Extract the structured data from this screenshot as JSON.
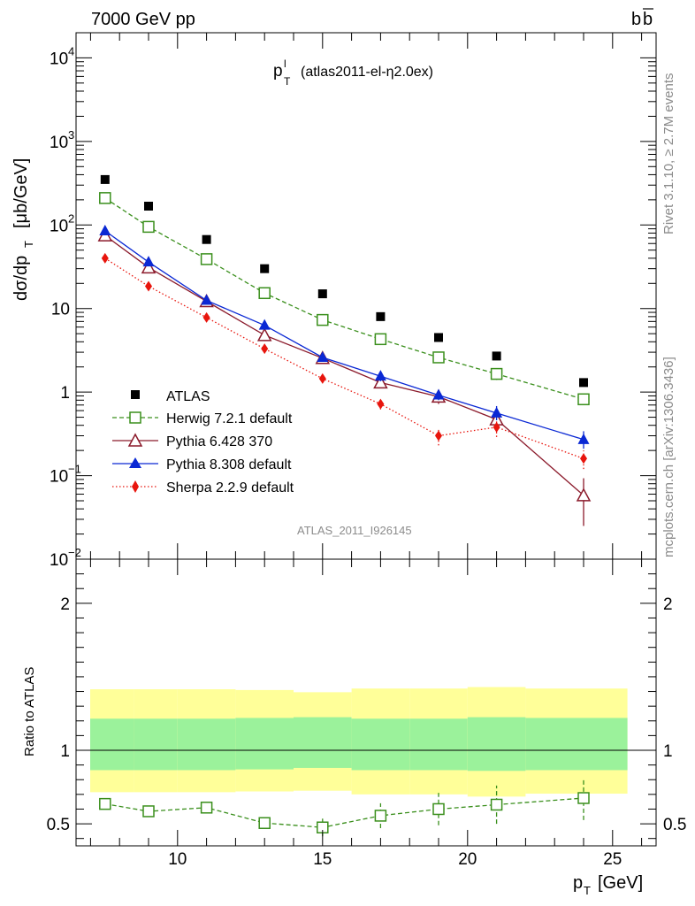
{
  "header": {
    "left": "7000 GeV pp",
    "right_base": "b",
    "right_bar": "b"
  },
  "side": {
    "top": "Rivet 3.1.10, ≥ 2.7M events",
    "bottom": "mcplots.cern.ch [arXiv:1306.3436]"
  },
  "watermark": "ATLAS_2011_I926145",
  "chart_data": [
    {
      "type": "line",
      "title_main": "p",
      "title_sup": "l",
      "title_sub": "T",
      "title_rest": "(atlas2011-el-η2.0ex)",
      "ylabel": "dσ/dp_T [μb/GeV]",
      "yscale": "log",
      "ylim": [
        0.01,
        20000
      ],
      "xlim": [
        6.5,
        26.5
      ],
      "y_ticks": [
        {
          "v": 10000,
          "base": "10",
          "exp": "4"
        },
        {
          "v": 1000,
          "base": "10",
          "exp": "3"
        },
        {
          "v": 100,
          "base": "10",
          "exp": "2"
        },
        {
          "v": 10,
          "base": "10",
          "exp": ""
        },
        {
          "v": 1,
          "base": "1",
          "exp": ""
        },
        {
          "v": 0.1,
          "base": "10",
          "exp": "−1"
        },
        {
          "v": 0.01,
          "base": "10",
          "exp": "−2"
        }
      ],
      "x": [
        7.5,
        9,
        11,
        13,
        15,
        17,
        19,
        21,
        24
      ],
      "series": [
        {
          "name": "ATLAS",
          "color": "#000000",
          "marker": "filled-square",
          "line": "none",
          "values": [
            350,
            168,
            67,
            30,
            15,
            8,
            4.5,
            2.7,
            1.3
          ]
        },
        {
          "name": "Herwig 7.2.1 default",
          "color": "#3a8f1c",
          "marker": "open-square",
          "line": "dashed",
          "values": [
            210,
            95,
            39,
            15.3,
            7.3,
            4.3,
            2.6,
            1.65,
            0.82
          ],
          "err_low": [
            195,
            90,
            37,
            14.5,
            7.0,
            4.1,
            2.4,
            1.4,
            0.7
          ],
          "err_high": [
            225,
            100,
            41,
            16.2,
            7.7,
            4.5,
            2.85,
            1.95,
            0.95
          ]
        },
        {
          "name": "Pythia 6.428 370",
          "color": "#8b1a2b",
          "marker": "open-triangle",
          "line": "solid",
          "values": [
            75,
            31,
            12.2,
            4.8,
            2.55,
            1.3,
            0.88,
            0.47,
            0.058
          ],
          "err_low": [
            72,
            30,
            11.7,
            4.5,
            2.4,
            1.15,
            0.72,
            0.38,
            0.025
          ],
          "err_high": [
            78,
            32,
            12.7,
            5.1,
            2.7,
            1.45,
            1.05,
            0.56,
            0.093
          ]
        },
        {
          "name": "Pythia 8.308 default",
          "color": "#0a28d4",
          "marker": "filled-triangle",
          "line": "solid",
          "values": [
            85,
            36,
            12.5,
            6.3,
            2.6,
            1.55,
            0.92,
            0.56,
            0.27
          ],
          "err_low": [
            82,
            34,
            12.0,
            6.0,
            2.45,
            1.35,
            0.8,
            0.46,
            0.21
          ],
          "err_high": [
            88,
            38,
            13.0,
            6.6,
            2.75,
            1.75,
            1.05,
            0.68,
            0.34
          ]
        },
        {
          "name": "Sherpa 2.2.9 default",
          "color": "#e8150d",
          "marker": "filled-diamond",
          "line": "dotted",
          "values": [
            40,
            18.5,
            7.8,
            3.3,
            1.45,
            0.72,
            0.3,
            0.38,
            0.16
          ],
          "err_low": [
            38,
            17.5,
            7.4,
            3.1,
            1.35,
            0.62,
            0.23,
            0.29,
            0.12
          ],
          "err_high": [
            42,
            19.5,
            8.2,
            3.5,
            1.55,
            0.82,
            0.37,
            0.47,
            0.2
          ]
        }
      ],
      "legend": "left, lower half"
    },
    {
      "type": "line",
      "ylabel": "Ratio to ATLAS",
      "xlabel_main": "p",
      "xlabel_sub": "T",
      "xlabel_rest": "[GeV]",
      "xlim": [
        6.5,
        26.5
      ],
      "ylim": [
        0.35,
        2.3
      ],
      "x_ticks": [
        10,
        15,
        20,
        25
      ],
      "y_ticks": [
        0.5,
        1,
        2
      ],
      "bands": {
        "edges": [
          6.5,
          8.5,
          10,
          12,
          14,
          16,
          18,
          20,
          22,
          26
        ],
        "inner_low": [
          0.865,
          0.865,
          0.865,
          0.87,
          0.88,
          0.865,
          0.865,
          0.86,
          0.865
        ],
        "inner_high": [
          1.215,
          1.215,
          1.215,
          1.22,
          1.225,
          1.215,
          1.215,
          1.225,
          1.22
        ],
        "outer_low": [
          0.715,
          0.715,
          0.715,
          0.72,
          0.725,
          0.7,
          0.7,
          0.685,
          0.705
        ],
        "outer_high": [
          1.415,
          1.415,
          1.415,
          1.41,
          1.395,
          1.42,
          1.42,
          1.43,
          1.42
        ],
        "inner_color": "#9bf29b",
        "outer_color": "#ffff99"
      },
      "series": [
        {
          "name": "Herwig 7.2.1 default",
          "color": "#3a8f1c",
          "marker": "open-square",
          "line": "dashed",
          "values": [
            0.635,
            0.585,
            0.61,
            0.505,
            0.475,
            0.555,
            0.6,
            0.63,
            0.675
          ],
          "err_low": [
            0.62,
            0.57,
            0.585,
            0.465,
            0.415,
            0.47,
            0.49,
            0.5,
            0.525
          ],
          "err_high": [
            0.65,
            0.6,
            0.635,
            0.545,
            0.535,
            0.64,
            0.71,
            0.76,
            0.81
          ]
        }
      ]
    }
  ]
}
